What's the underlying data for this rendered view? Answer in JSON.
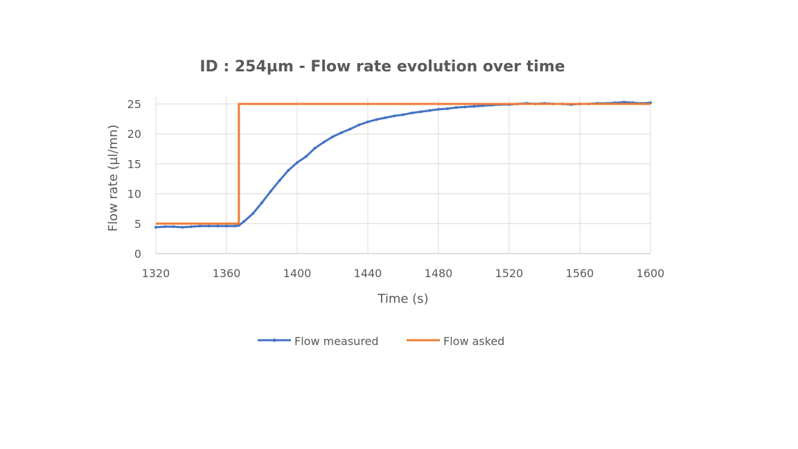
{
  "chart_data": {
    "type": "line",
    "title": "ID : 254µm - Flow rate evolution over time",
    "xlabel": "Time (s)",
    "ylabel": "Flow rate (µl/mn)",
    "xlim": [
      1320,
      1600
    ],
    "ylim": [
      0,
      25
    ],
    "xticks": [
      1320,
      1360,
      1400,
      1440,
      1480,
      1520,
      1560,
      1600
    ],
    "yticks": [
      0,
      5,
      10,
      15,
      20,
      25
    ],
    "grid": true,
    "legend_position": "bottom",
    "series": [
      {
        "name": "Flow measured",
        "color": "#4472C4",
        "marker": "circle",
        "x": [
          1320,
          1325,
          1330,
          1335,
          1340,
          1345,
          1350,
          1355,
          1360,
          1365,
          1367,
          1370,
          1375,
          1380,
          1385,
          1390,
          1395,
          1400,
          1405,
          1410,
          1415,
          1420,
          1425,
          1430,
          1435,
          1440,
          1445,
          1450,
          1455,
          1460,
          1465,
          1470,
          1475,
          1480,
          1485,
          1490,
          1495,
          1500,
          1505,
          1510,
          1515,
          1520,
          1525,
          1530,
          1535,
          1540,
          1545,
          1550,
          1555,
          1560,
          1565,
          1570,
          1575,
          1580,
          1585,
          1590,
          1595,
          1600
        ],
        "y": [
          4.4,
          4.5,
          4.5,
          4.4,
          4.5,
          4.6,
          4.6,
          4.6,
          4.6,
          4.6,
          4.7,
          5.4,
          6.7,
          8.5,
          10.4,
          12.2,
          13.9,
          15.2,
          16.2,
          17.6,
          18.6,
          19.5,
          20.2,
          20.8,
          21.5,
          22.0,
          22.4,
          22.7,
          23.0,
          23.2,
          23.5,
          23.7,
          23.9,
          24.1,
          24.2,
          24.4,
          24.5,
          24.6,
          24.7,
          24.8,
          24.9,
          24.9,
          25.0,
          25.1,
          25.0,
          25.1,
          25.0,
          25.0,
          24.9,
          25.0,
          25.0,
          25.1,
          25.1,
          25.2,
          25.3,
          25.2,
          25.1,
          25.2
        ]
      },
      {
        "name": "Flow asked",
        "color": "#ED7D31",
        "marker": "none",
        "x": [
          1320,
          1367,
          1367,
          1600
        ],
        "y": [
          5,
          5,
          25,
          25
        ]
      }
    ]
  }
}
